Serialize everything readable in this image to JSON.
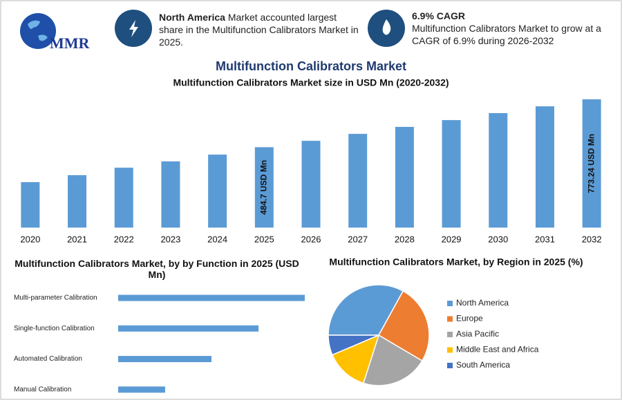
{
  "header": {
    "logo": "MMR",
    "info": [
      {
        "bold": "North America",
        "text": "Market accounted largest share in the Multifunction Calibrators Market in 2025."
      },
      {
        "bold": "6.9% CAGR",
        "text": "Multifunction Calibrators Market to grow at a CAGR of 6.9% during 2026-2032"
      }
    ],
    "title": "Multifunction Calibrators Market"
  },
  "chart_data": [
    {
      "type": "bar",
      "title": "Multifunction Calibrators Market size in USD Mn (2020-2032)",
      "categories": [
        "2020",
        "2021",
        "2022",
        "2023",
        "2024",
        "2025",
        "2026",
        "2027",
        "2028",
        "2029",
        "2030",
        "2031",
        "2032"
      ],
      "values": [
        274,
        316,
        361,
        399,
        440,
        484.7,
        523,
        565,
        607,
        648,
        690,
        731,
        773.24
      ],
      "value_labels": [
        null,
        null,
        null,
        null,
        null,
        "484.7 USD Mn",
        null,
        null,
        null,
        null,
        null,
        null,
        "773.24 USD Mn"
      ],
      "color": "#5b9bd5"
    },
    {
      "type": "hbar",
      "title": "Multifunction Calibrators Market, by by Function in 2025 (USD Mn)",
      "categories": [
        "Multi-parameter Calibration",
        "Single-function Calibration",
        "Automated Calibration",
        "Manual Calibration"
      ],
      "values": [
        193.6,
        145.6,
        96.8,
        48.7
      ],
      "color": "#5b9bd5"
    },
    {
      "type": "pie",
      "title": "Multifunction Calibrators Market, by Region in 2025 (%)",
      "categories": [
        "North America",
        "Europe",
        "Asia Pacific",
        "Middle East and Africa",
        "South America"
      ],
      "values": [
        33,
        25.5,
        21.4,
        13.7,
        6.4
      ],
      "colors": [
        "#5b9bd5",
        "#ed7d31",
        "#a5a5a5",
        "#ffc000",
        "#4472c4"
      ]
    }
  ]
}
